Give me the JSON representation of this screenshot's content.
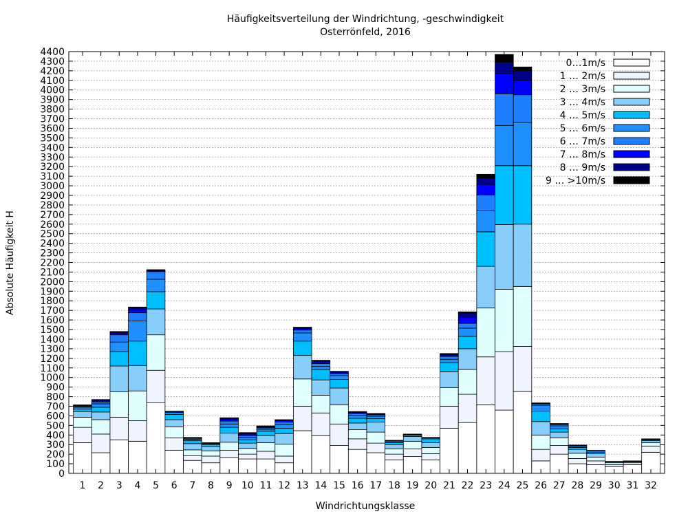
{
  "chart_data": {
    "type": "bar",
    "stacked": true,
    "title": "Häufigkeitsverteilung der Windrichtung, -geschwindigkeit",
    "subtitle": "Osterrönfeld, 2016",
    "xlabel": "Windrichtungsklasse",
    "ylabel": "Absolute Häufigkeit H",
    "ylim": [
      0,
      4400
    ],
    "ytick_step": 100,
    "grid": true,
    "legend_position": "top-right",
    "categories": [
      "1",
      "2",
      "3",
      "4",
      "5",
      "6",
      "7",
      "8",
      "9",
      "10",
      "11",
      "12",
      "13",
      "14",
      "15",
      "16",
      "17",
      "18",
      "19",
      "20",
      "21",
      "22",
      "23",
      "24",
      "25",
      "26",
      "27",
      "28",
      "29",
      "30",
      "31",
      "32"
    ],
    "series": [
      {
        "name": "0…1m/s",
        "color": "#ffffff",
        "values": [
          320,
          215,
          350,
          335,
          735,
          240,
          135,
          110,
          165,
          150,
          150,
          110,
          445,
          395,
          290,
          250,
          215,
          140,
          175,
          140,
          470,
          530,
          715,
          660,
          855,
          130,
          200,
          100,
          90,
          70,
          90,
          220
        ]
      },
      {
        "name": "1 … 2m/s",
        "color": "#f0f4ff",
        "values": [
          160,
          195,
          235,
          215,
          340,
          130,
          50,
          70,
          75,
          50,
          80,
          70,
          255,
          235,
          225,
          110,
          100,
          60,
          80,
          65,
          230,
          295,
          500,
          610,
          470,
          120,
          90,
          55,
          40,
          20,
          20,
          65
        ]
      },
      {
        "name": "2 … 3m/s",
        "color": "#e0ffff",
        "values": [
          105,
          150,
          265,
          310,
          370,
          115,
          60,
          55,
          85,
          60,
          90,
          125,
          285,
          185,
          200,
          95,
          115,
          55,
          80,
          65,
          195,
          260,
          510,
          650,
          625,
          150,
          80,
          55,
          40,
          20,
          10,
          35
        ]
      },
      {
        "name": "3 … 4m/s",
        "color": "#87cefa",
        "values": [
          60,
          80,
          270,
          265,
          270,
          75,
          65,
          45,
          95,
          55,
          75,
          110,
          245,
          160,
          175,
          70,
          105,
          45,
          50,
          50,
          165,
          215,
          435,
          675,
          650,
          140,
          60,
          40,
          35,
          10,
          5,
          20
        ]
      },
      {
        "name": "4 … 5m/s",
        "color": "#00bfff",
        "values": [
          25,
          50,
          150,
          255,
          180,
          55,
          30,
          20,
          60,
          35,
          45,
          55,
          150,
          110,
          90,
          50,
          35,
          20,
          15,
          40,
          95,
          130,
          360,
          615,
          610,
          110,
          35,
          20,
          15,
          5,
          5,
          10
        ]
      },
      {
        "name": "5 … 6m/s",
        "color": "#1e90ff",
        "values": [
          20,
          35,
          100,
          210,
          130,
          20,
          15,
          10,
          35,
          25,
          20,
          40,
          85,
          30,
          40,
          30,
          25,
          10,
          5,
          10,
          35,
          85,
          225,
          420,
          450,
          60,
          30,
          10,
          15,
          0,
          0,
          5
        ]
      },
      {
        "name": "6 … 7m/s",
        "color": "#1e80ff",
        "values": [
          10,
          20,
          75,
          85,
          80,
          10,
          10,
          5,
          30,
          20,
          15,
          25,
          30,
          30,
          20,
          20,
          15,
          10,
          5,
          5,
          30,
          50,
          160,
          330,
          290,
          15,
          15,
          10,
          5,
          0,
          0,
          5
        ]
      },
      {
        "name": "7 … 8m/s",
        "color": "#0000ff",
        "values": [
          5,
          15,
          20,
          35,
          10,
          5,
          5,
          5,
          20,
          15,
          10,
          15,
          15,
          20,
          15,
          10,
          5,
          5,
          0,
          0,
          15,
          60,
          110,
          210,
          150,
          5,
          5,
          5,
          0,
          0,
          0,
          0
        ]
      },
      {
        "name": "8 … 9m/s",
        "color": "#00008b",
        "values": [
          5,
          5,
          10,
          20,
          5,
          0,
          5,
          0,
          10,
          10,
          5,
          5,
          10,
          10,
          10,
          5,
          5,
          0,
          0,
          0,
          10,
          45,
          65,
          120,
          100,
          0,
          5,
          0,
          0,
          0,
          0,
          0
        ]
      },
      {
        "name": "9 … >10m/s",
        "color": "#000000",
        "values": [
          5,
          5,
          5,
          5,
          5,
          0,
          0,
          0,
          5,
          5,
          5,
          5,
          5,
          5,
          0,
          5,
          5,
          0,
          0,
          0,
          5,
          15,
          40,
          80,
          40,
          5,
          0,
          0,
          0,
          0,
          0,
          0
        ]
      }
    ]
  }
}
